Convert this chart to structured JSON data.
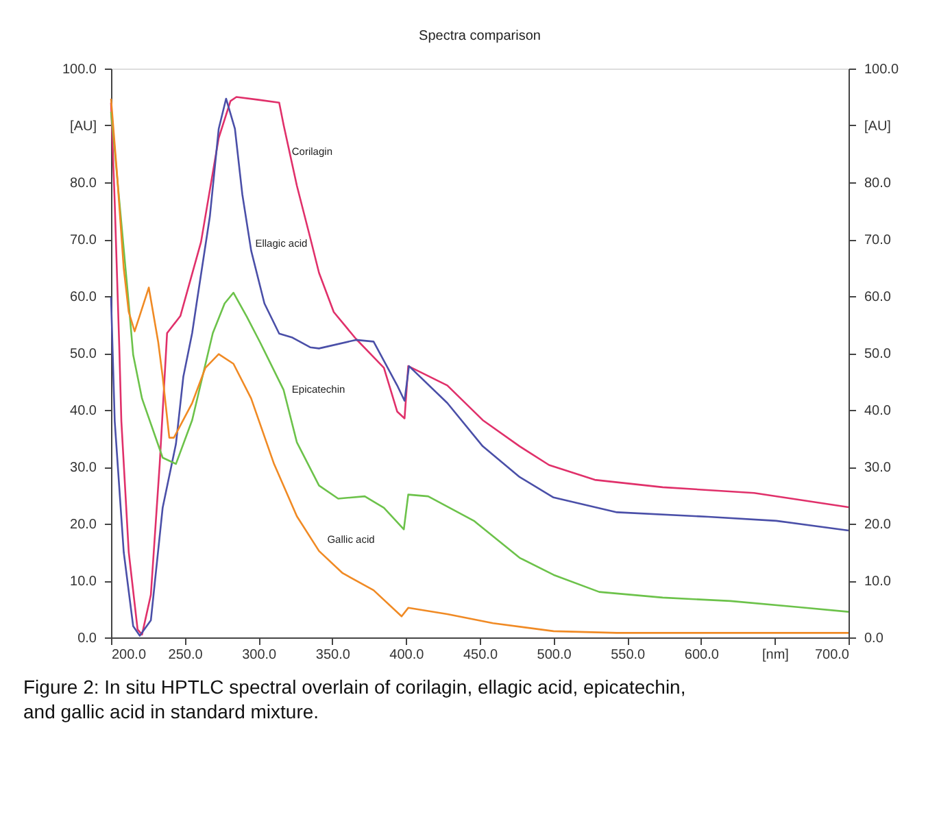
{
  "chart_data": {
    "type": "line",
    "title": "Spectra comparison",
    "xlim": [
      200,
      700
    ],
    "xticks": [
      {
        "value": 200,
        "label": "200.0"
      },
      {
        "value": 250,
        "label": "250.0"
      },
      {
        "value": 300,
        "label": "300.0"
      },
      {
        "value": 350,
        "label": "350.0"
      },
      {
        "value": 400,
        "label": "400.0"
      },
      {
        "value": 450,
        "label": "450.0"
      },
      {
        "value": 500,
        "label": "500.0"
      },
      {
        "value": 550,
        "label": "550.0"
      },
      {
        "value": 600,
        "label": "600.0"
      },
      {
        "value": 650,
        "label": "[nm]"
      },
      {
        "value": 700,
        "label": "700.0"
      }
    ],
    "ylim": [
      0,
      100
    ],
    "yticks": [
      {
        "value": 0,
        "label": "0.0"
      },
      {
        "value": 10,
        "label": "10.0"
      },
      {
        "value": 20,
        "label": "20.0"
      },
      {
        "value": 30,
        "label": "30.0"
      },
      {
        "value": 40,
        "label": "40.0"
      },
      {
        "value": 50,
        "label": "50.0"
      },
      {
        "value": 60,
        "label": "60.0"
      },
      {
        "value": 70,
        "label": "70.0"
      },
      {
        "value": 80,
        "label": "80.0"
      },
      {
        "value": 90,
        "label": "[AU]"
      },
      {
        "value": 100,
        "label": "100.0"
      }
    ],
    "y2lim": [
      0,
      100
    ],
    "y2ticks": [
      {
        "value": 0,
        "label": "0.0"
      },
      {
        "value": 10,
        "label": "10.0"
      },
      {
        "value": 20,
        "label": "20.0"
      },
      {
        "value": 30,
        "label": "30.0"
      },
      {
        "value": 40,
        "label": "40.0"
      },
      {
        "value": 50,
        "label": "50.0"
      },
      {
        "value": 60,
        "label": "60.0"
      },
      {
        "value": 70,
        "label": "70.0"
      },
      {
        "value": 80,
        "label": "80.0"
      },
      {
        "value": 90,
        "label": "[AU]"
      },
      {
        "value": 100,
        "label": "100.0"
      }
    ],
    "grid": false,
    "marker": "none",
    "line_style": "solid",
    "annotations": [
      "Figure 2: In situ HPTLC spectral overlain of corilagin, ellagic acid, epicatechin, and gallic acid in standard mixture."
    ],
    "series": [
      {
        "name": "Corilagin",
        "color": "#e0306a",
        "x": [
          200,
          202.5,
          205.6,
          207,
          212,
          218,
          221,
          227,
          233,
          238,
          247,
          261,
          273,
          281,
          285,
          300,
          314,
          317,
          326,
          335,
          341,
          351,
          366,
          385,
          394,
          399,
          401.5,
          428,
          452,
          477,
          497,
          528,
          574,
          636,
          700
        ],
        "values": [
          94,
          76.4,
          51,
          38,
          15,
          1.4,
          0.5,
          7.5,
          30.5,
          53.5,
          56.5,
          69.5,
          87.8,
          94.3,
          95,
          94.5,
          94,
          90.1,
          79.4,
          70.3,
          64.1,
          57.2,
          52.5,
          47.4,
          39.7,
          38.5,
          47.7,
          44.3,
          38.2,
          33.6,
          30.3,
          27.7,
          26.4,
          25.4,
          22.9
        ]
      },
      {
        "name": "Ellagic acid",
        "color": "#4a4fa8",
        "x": [
          200,
          202.5,
          208.6,
          215,
          219.5,
          227,
          235,
          244,
          249,
          255,
          258,
          267,
          273,
          278,
          284,
          289,
          295,
          304,
          314,
          323,
          335,
          341,
          366,
          378,
          394,
          399,
          402,
          428,
          452,
          477,
          500,
          543,
          605,
          651,
          700
        ],
        "values": [
          59.8,
          38,
          15,
          2,
          0.3,
          3,
          22.8,
          34,
          45.8,
          53.5,
          58.7,
          74,
          89.4,
          94.7,
          89.4,
          77.9,
          68,
          58.7,
          53.4,
          52.7,
          51,
          50.8,
          52.3,
          52,
          44.3,
          41.6,
          47.7,
          41.2,
          33.6,
          28.2,
          24.6,
          22,
          21.2,
          20.5,
          18.8
        ]
      },
      {
        "name": "Epicatechin",
        "color": "#6cc24a",
        "x": [
          200,
          202.5,
          212,
          215,
          221,
          235,
          244,
          255,
          269,
          277,
          283,
          292,
          301,
          317,
          326,
          341,
          354,
          372,
          385,
          398.5,
          401.5,
          415,
          446,
          477,
          500,
          531,
          574,
          620,
          667,
          700
        ],
        "values": [
          92.4,
          85.6,
          58.7,
          49.7,
          42,
          31.6,
          30.5,
          38.2,
          53.5,
          58.7,
          60.6,
          56.4,
          51.9,
          43.5,
          34.3,
          26.7,
          24.4,
          24.8,
          22.8,
          19,
          25.1,
          24.8,
          20.5,
          14,
          11,
          8,
          7,
          6.4,
          5.3,
          4.5
        ]
      },
      {
        "name": "Gallic acid",
        "color": "#f08a24",
        "x": [
          200,
          204,
          208.6,
          212,
          216,
          220,
          225.6,
          232,
          235,
          239.5,
          242.6,
          255,
          264,
          273,
          283,
          295,
          310.5,
          326,
          341,
          357,
          378,
          397,
          401.5,
          428,
          459,
          500,
          543,
          700
        ],
        "values": [
          94.7,
          81.7,
          64.9,
          57.2,
          53.8,
          57,
          61.5,
          51.9,
          45.8,
          35.1,
          35.1,
          41.2,
          47.4,
          49.8,
          48.1,
          42,
          30.5,
          21.3,
          15.2,
          11.3,
          8.3,
          3.7,
          5.2,
          4.1,
          2.5,
          1.1,
          0.8,
          0.8
        ]
      }
    ]
  }
}
